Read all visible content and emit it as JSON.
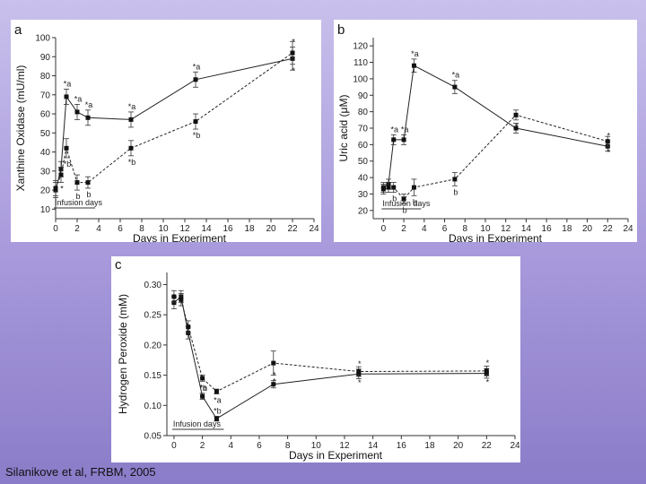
{
  "credit": "Silanikove et al, FRBM, 2005",
  "chart_data": [
    {
      "type": "line",
      "panel_label": "a",
      "xlabel": "Days in Experiment",
      "ylabel": "Xanthine Oxidase (mU/ml)",
      "xlim": [
        0,
        24
      ],
      "ylim": [
        5,
        100
      ],
      "xticks": [
        0,
        2,
        4,
        6,
        8,
        10,
        12,
        14,
        16,
        18,
        20,
        22,
        24
      ],
      "yticks": [
        10,
        20,
        30,
        40,
        50,
        60,
        70,
        80,
        90,
        100
      ],
      "annotation": "Infusion days",
      "series": [
        {
          "name": "solid",
          "dashed": false,
          "points": [
            {
              "x": 0,
              "y": 20,
              "err": 4,
              "label": ""
            },
            {
              "x": 0.5,
              "y": 31,
              "err": 4,
              "label": ""
            },
            {
              "x": 1,
              "y": 69,
              "err": 4,
              "label": "*a"
            },
            {
              "x": 2,
              "y": 61,
              "err": 4,
              "label": "*a"
            },
            {
              "x": 3,
              "y": 58,
              "err": 4,
              "label": "*a"
            },
            {
              "x": 7,
              "y": 57,
              "err": 4,
              "label": "*a"
            },
            {
              "x": 13,
              "y": 78,
              "err": 4,
              "label": "*a"
            },
            {
              "x": 22,
              "y": 89,
              "err": 6,
              "label": "*"
            }
          ]
        },
        {
          "name": "dashed",
          "dashed": true,
          "points": [
            {
              "x": 0,
              "y": 21,
              "err": 4,
              "label": ""
            },
            {
              "x": 0.5,
              "y": 28,
              "err": 4,
              "label": "*"
            },
            {
              "x": 1,
              "y": 42,
              "err": 5,
              "label": "*b"
            },
            {
              "x": 2,
              "y": 24,
              "err": 4,
              "label": "b"
            },
            {
              "x": 3,
              "y": 24,
              "err": 3,
              "label": "b"
            },
            {
              "x": 7,
              "y": 42,
              "err": 4,
              "label": "*b"
            },
            {
              "x": 13,
              "y": 56,
              "err": 4,
              "label": "*b"
            },
            {
              "x": 22,
              "y": 92,
              "err": 6,
              "label": "*"
            }
          ]
        }
      ]
    },
    {
      "type": "line",
      "panel_label": "b",
      "xlabel": "Days in Experiment",
      "ylabel": "Uric acid (μM)",
      "xlim": [
        -1,
        24
      ],
      "ylim": [
        15,
        125
      ],
      "xticks": [
        0,
        2,
        4,
        6,
        8,
        10,
        12,
        14,
        16,
        18,
        20,
        22,
        24
      ],
      "yticks": [
        20,
        30,
        40,
        50,
        60,
        70,
        80,
        90,
        100,
        110,
        120
      ],
      "annotation": "Infusion days",
      "series": [
        {
          "name": "solid",
          "dashed": false,
          "points": [
            {
              "x": 0,
              "y": 34,
              "err": 3,
              "label": ""
            },
            {
              "x": 0.5,
              "y": 36,
              "err": 3,
              "label": ""
            },
            {
              "x": 1,
              "y": 63,
              "err": 3,
              "label": "*a"
            },
            {
              "x": 2,
              "y": 63,
              "err": 3,
              "label": "*a"
            },
            {
              "x": 3,
              "y": 108,
              "err": 4,
              "label": "*a"
            },
            {
              "x": 7,
              "y": 95,
              "err": 4,
              "label": "*a"
            },
            {
              "x": 13,
              "y": 70,
              "err": 3,
              "label": "*"
            },
            {
              "x": 22,
              "y": 59,
              "err": 3,
              "label": "*"
            }
          ]
        },
        {
          "name": "dashed",
          "dashed": true,
          "points": [
            {
              "x": 0,
              "y": 33,
              "err": 3,
              "label": ""
            },
            {
              "x": 0.5,
              "y": 34,
              "err": 3,
              "label": ""
            },
            {
              "x": 1,
              "y": 34,
              "err": 3,
              "label": "b"
            },
            {
              "x": 2,
              "y": 27,
              "err": 3,
              "label": "b"
            },
            {
              "x": 3,
              "y": 34,
              "err": 5,
              "label": "b"
            },
            {
              "x": 7,
              "y": 39,
              "err": 4,
              "label": "b"
            },
            {
              "x": 13,
              "y": 78,
              "err": 3,
              "label": "*"
            },
            {
              "x": 22,
              "y": 62,
              "err": 3,
              "label": "*"
            }
          ]
        }
      ]
    },
    {
      "type": "line",
      "panel_label": "c",
      "xlabel": "Days in Experiment",
      "ylabel": "Hydrogen Peroxide (mM)",
      "xlim": [
        -0.5,
        24
      ],
      "ylim": [
        0.05,
        0.32
      ],
      "xticks": [
        0,
        2,
        4,
        6,
        8,
        10,
        12,
        14,
        16,
        18,
        20,
        22,
        24
      ],
      "yticks": [
        0.05,
        0.1,
        0.15,
        0.2,
        0.25,
        0.3
      ],
      "yticklabels": [
        "0.05",
        "0.10",
        "0.15",
        "0.20",
        "0.25",
        "0.30"
      ],
      "annotation": "Infusion days",
      "series": [
        {
          "name": "solid",
          "dashed": false,
          "points": [
            {
              "x": 0,
              "y": 0.27,
              "err": 0.01,
              "label": ""
            },
            {
              "x": 0.5,
              "y": 0.28,
              "err": 0.01,
              "label": ""
            },
            {
              "x": 1,
              "y": 0.22,
              "err": 0.01,
              "label": ""
            },
            {
              "x": 2,
              "y": 0.115,
              "err": 0.005,
              "label": "*b"
            },
            {
              "x": 3,
              "y": 0.078,
              "err": 0.004,
              "label": "*b"
            },
            {
              "x": 7,
              "y": 0.135,
              "err": 0.006,
              "label": "*"
            },
            {
              "x": 13,
              "y": 0.152,
              "err": 0.008,
              "label": "*"
            },
            {
              "x": 22,
              "y": 0.153,
              "err": 0.008,
              "label": "*"
            }
          ]
        },
        {
          "name": "dashed",
          "dashed": true,
          "points": [
            {
              "x": 0,
              "y": 0.28,
              "err": 0.01,
              "label": ""
            },
            {
              "x": 0.5,
              "y": 0.275,
              "err": 0.01,
              "label": ""
            },
            {
              "x": 1,
              "y": 0.23,
              "err": 0.01,
              "label": ""
            },
            {
              "x": 2,
              "y": 0.145,
              "err": 0.005,
              "label": "*a"
            },
            {
              "x": 3,
              "y": 0.123,
              "err": 0.004,
              "label": "*a"
            },
            {
              "x": 7,
              "y": 0.17,
              "err": 0.02,
              "label": "*"
            },
            {
              "x": 13,
              "y": 0.156,
              "err": 0.008,
              "label": "*"
            },
            {
              "x": 22,
              "y": 0.157,
              "err": 0.008,
              "label": "*"
            }
          ]
        }
      ]
    }
  ]
}
